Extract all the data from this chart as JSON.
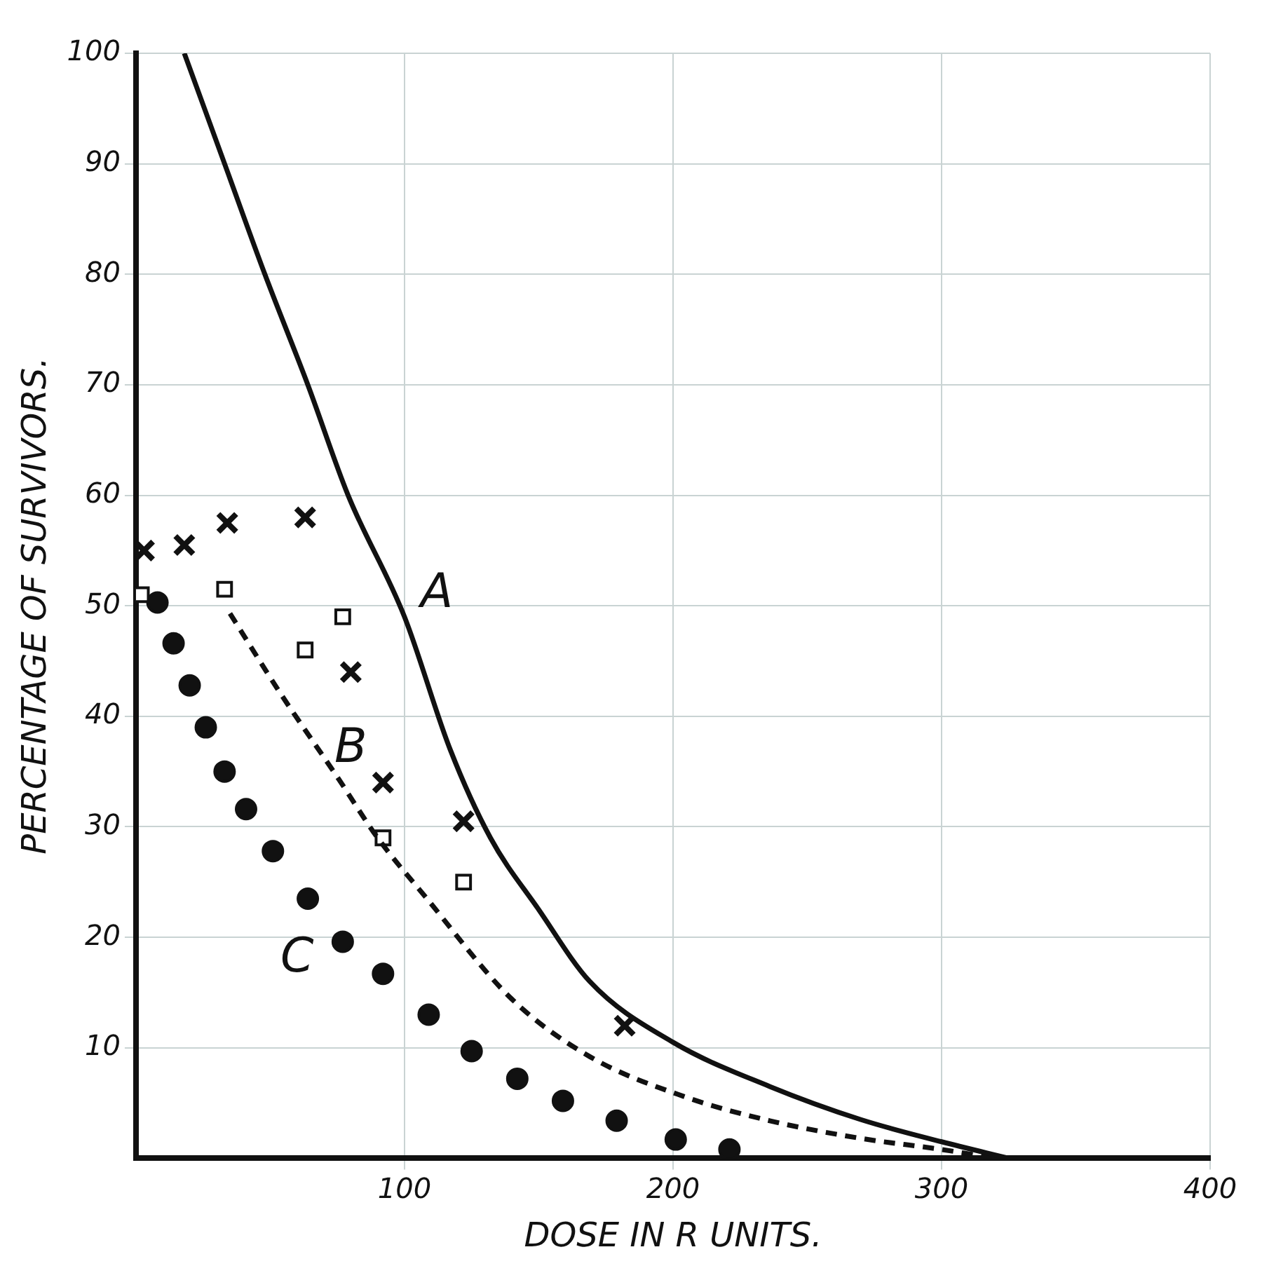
{
  "chart_data": {
    "type": "scatter",
    "xlabel": "DOSE IN R UNITS.",
    "ylabel": "PERCENTAGE OF SURVIVORS.",
    "xlim": [
      0,
      400
    ],
    "xticks": [
      100,
      200,
      300,
      400
    ],
    "ylim": [
      0,
      100
    ],
    "yticks": [
      10,
      20,
      30,
      40,
      50,
      60,
      70,
      80,
      90,
      100
    ],
    "grid": true,
    "legend": false,
    "series": [
      {
        "type": "line",
        "color": "#111111",
        "marker": "none",
        "line_style": "solid",
        "x": [
          18,
          33,
          48,
          64,
          79,
          100,
          117,
          132,
          150,
          169,
          200,
          236,
          270,
          300,
          325
        ],
        "values": [
          100,
          90,
          80,
          70,
          60,
          49,
          37,
          29,
          22.5,
          16,
          10.5,
          6.5,
          3.5,
          1.5,
          0
        ]
      },
      {
        "type": "line",
        "color": "#111111",
        "marker": "none",
        "line_style": "dashed",
        "x": [
          35,
          54,
          75,
          90,
          108,
          140,
          169,
          204,
          236,
          270,
          300,
          320
        ],
        "values": [
          49.3,
          42,
          34.5,
          29,
          23.6,
          14.4,
          9.2,
          5.6,
          3.4,
          1.8,
          0.8,
          0
        ]
      },
      {
        "type": "scatter",
        "color": "#111111",
        "marker": "cross",
        "x": [
          3,
          18,
          34,
          63,
          80,
          92,
          122,
          182
        ],
        "values": [
          55,
          55.5,
          57.5,
          58,
          44,
          34,
          30.5,
          12
        ]
      },
      {
        "type": "scatter",
        "color": "#111111",
        "marker": "square",
        "x": [
          2,
          33,
          63,
          77,
          92,
          122
        ],
        "values": [
          51,
          51.5,
          46,
          49,
          29,
          25
        ]
      },
      {
        "type": "scatter",
        "color": "#111111",
        "marker": "circle",
        "x": [
          8,
          14,
          20,
          26,
          33,
          41,
          51,
          64,
          77,
          92,
          109,
          125,
          142,
          159,
          179,
          201,
          221
        ],
        "values": [
          50.3,
          46.6,
          42.8,
          39,
          35,
          31.6,
          27.8,
          23.5,
          19.6,
          16.7,
          13,
          9.7,
          7.2,
          5.2,
          3.4,
          1.7,
          0.8
        ]
      }
    ],
    "annotations": [
      "A",
      "B",
      "C"
    ]
  }
}
